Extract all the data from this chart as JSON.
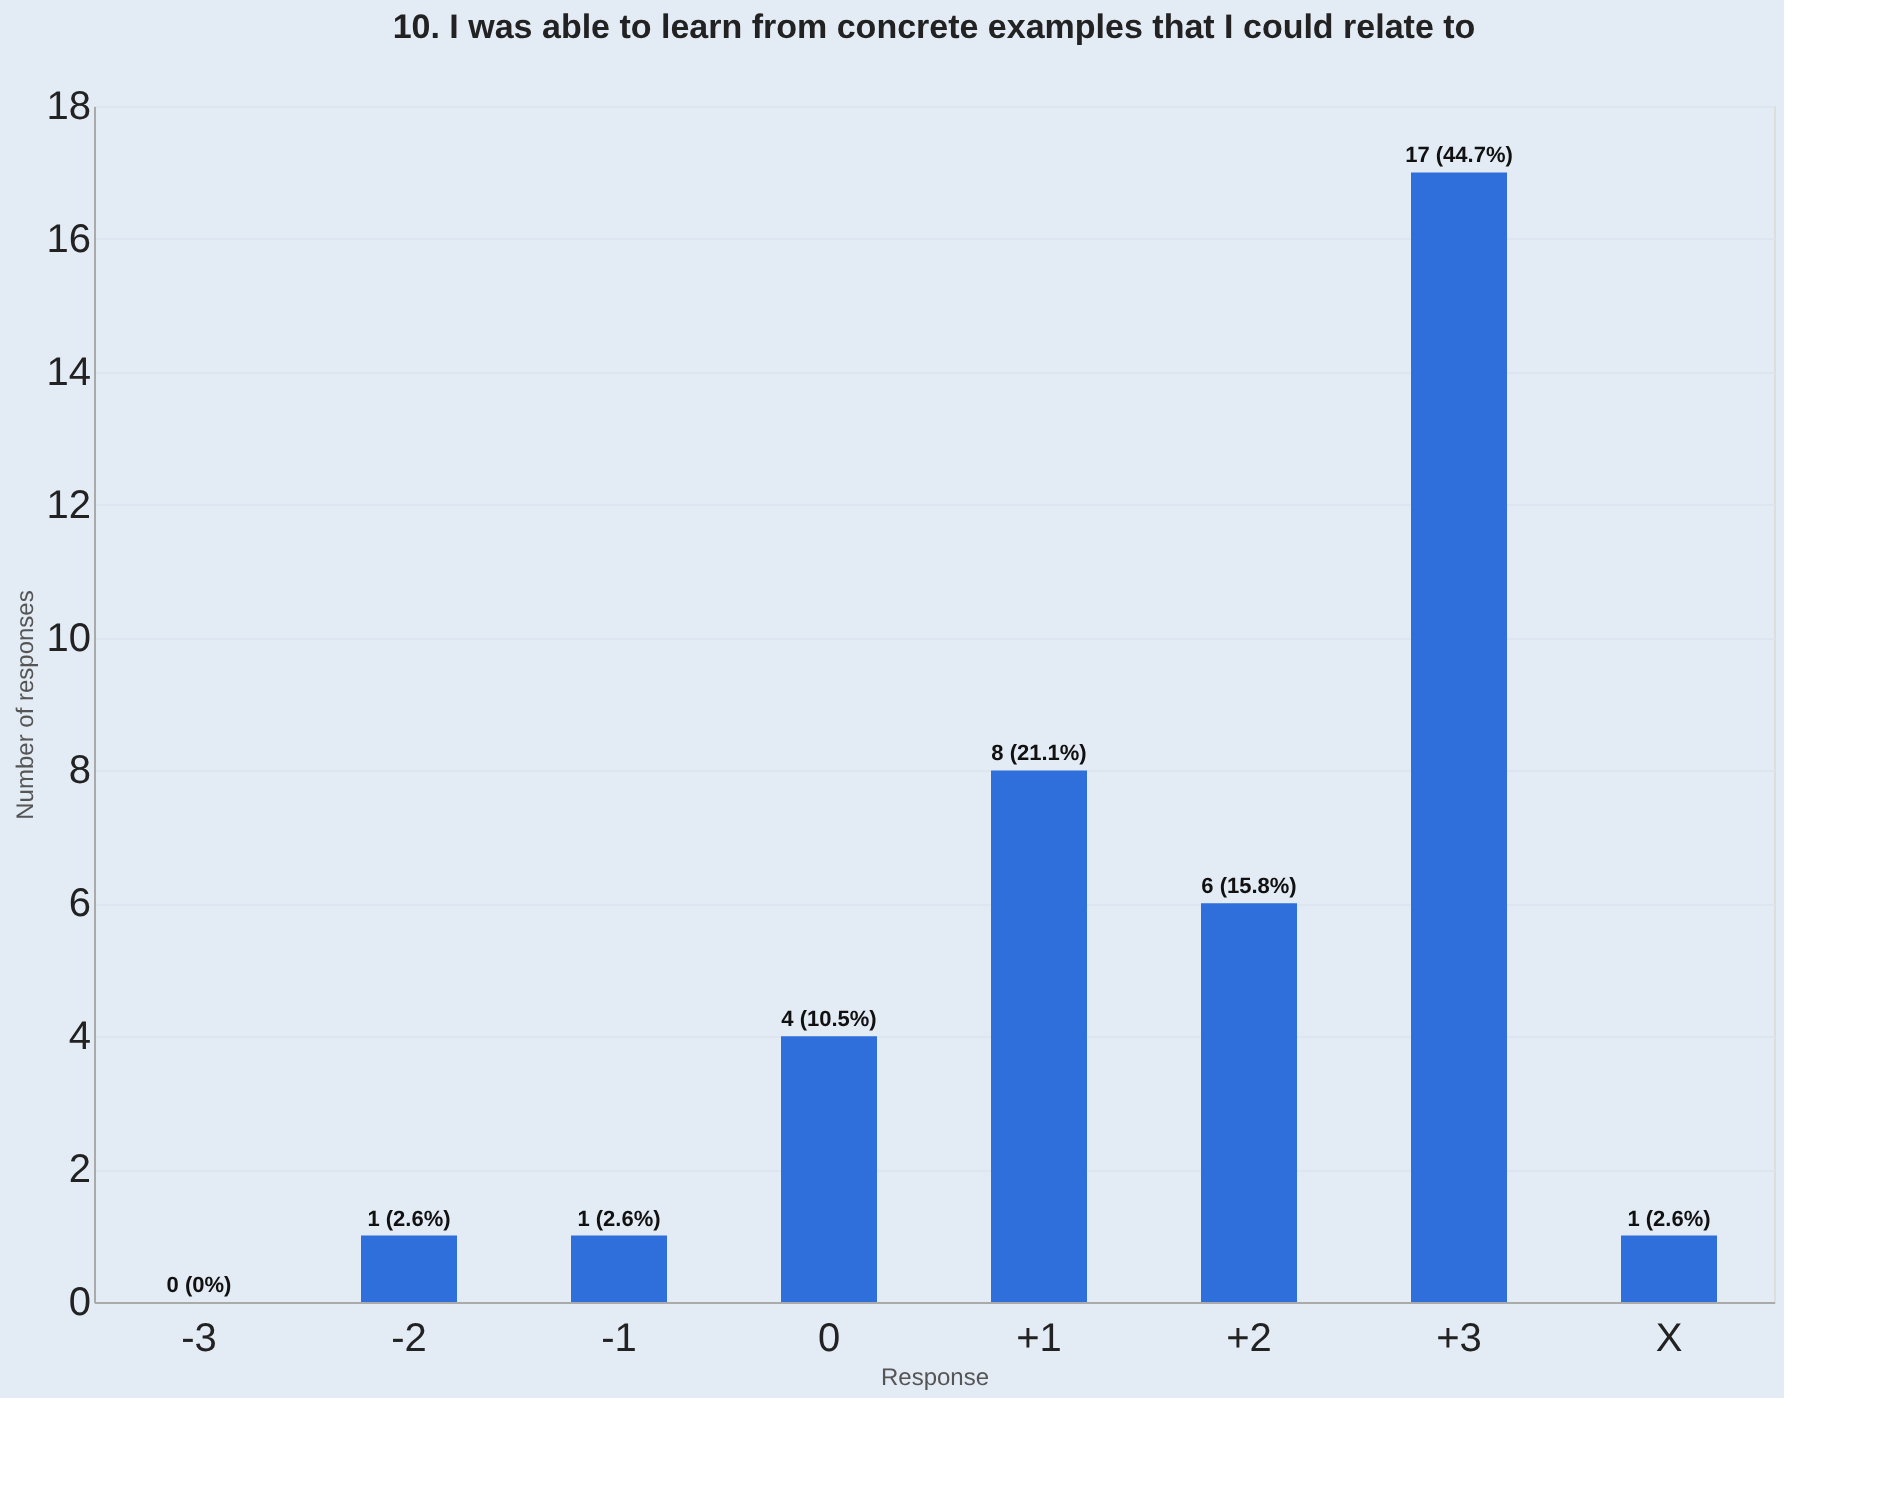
{
  "chart_data": {
    "type": "bar",
    "title": "10. I was able to learn from concrete examples that I could relate to",
    "xlabel": "Response",
    "ylabel": "Number of responses",
    "categories": [
      "-3",
      "-2",
      "-1",
      "0",
      "+1",
      "+2",
      "+3",
      "X"
    ],
    "values": [
      0,
      1,
      1,
      4,
      8,
      6,
      17,
      1
    ],
    "value_labels": [
      "0 (0%)",
      "1 (2.6%)",
      "1 (2.6%)",
      "4 (10.5%)",
      "8 (21.1%)",
      "6 (15.8%)",
      "17 (44.7%)",
      "1 (2.6%)"
    ],
    "color": "#2e6fdb",
    "ylim": [
      0,
      18
    ],
    "yticks": [
      0,
      2,
      4,
      6,
      8,
      10,
      12,
      14,
      16,
      18
    ],
    "grid": "y"
  }
}
